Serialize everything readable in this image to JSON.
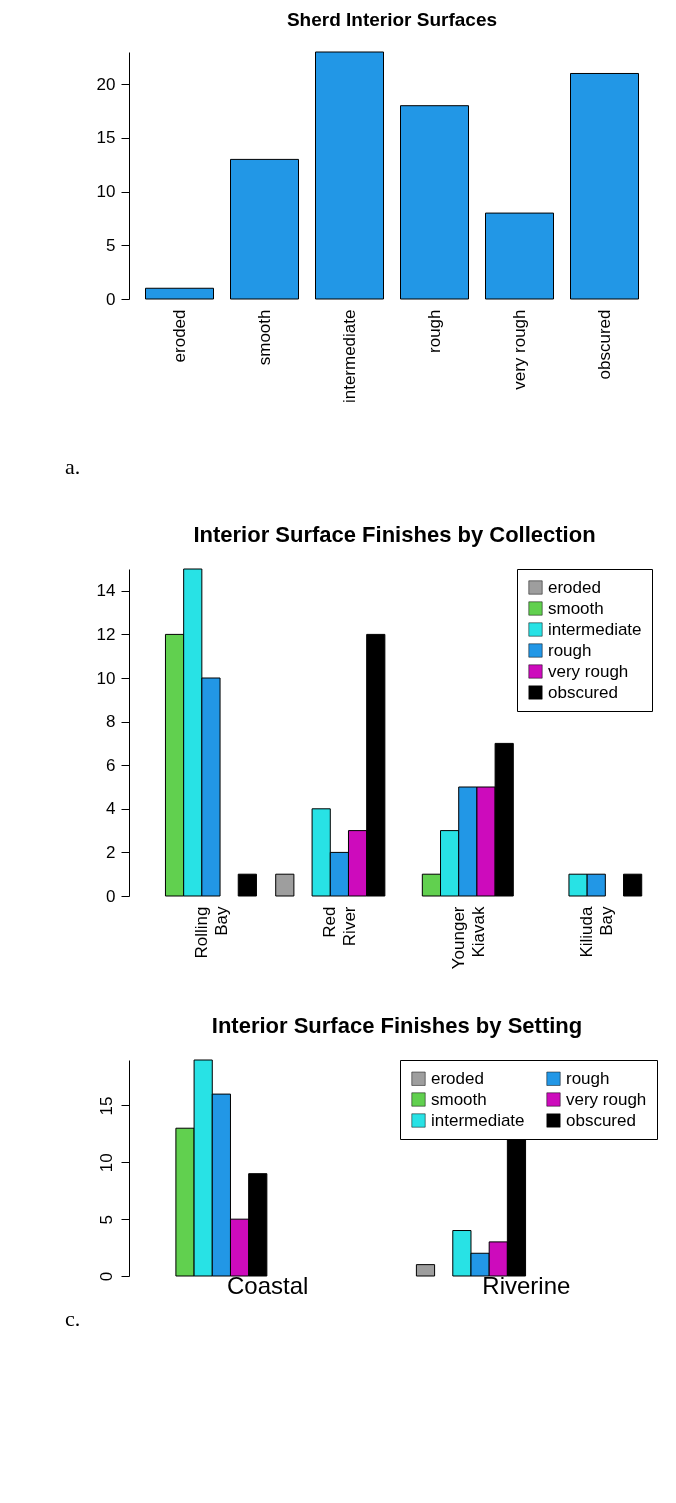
{
  "chart_data": [
    {
      "type": "bar",
      "title": "Sherd Interior Surfaces",
      "categories": [
        "eroded",
        "smooth",
        "intermediate",
        "rough",
        "very rough",
        "obscured"
      ],
      "values": [
        1,
        13,
        23,
        18,
        8,
        21
      ],
      "color": "#2297e6",
      "ylim": [
        0,
        23
      ],
      "yticks": [
        0,
        5,
        10,
        15,
        20
      ],
      "grid": false,
      "annotations": [
        "a."
      ]
    },
    {
      "type": "bar",
      "title": "Interior Surface Finishes by Collection",
      "categories": [
        "Rolling Bay",
        "Red River",
        "Younger Kiavak",
        "Kiliuda Bay"
      ],
      "series": [
        {
          "name": "eroded",
          "color": "#9e9e9e",
          "values": [
            0,
            1,
            0,
            0
          ]
        },
        {
          "name": "smooth",
          "color": "#61d04f",
          "values": [
            12,
            0,
            1,
            0
          ]
        },
        {
          "name": "intermediate",
          "color": "#28e2e5",
          "values": [
            15,
            4,
            3,
            1
          ]
        },
        {
          "name": "rough",
          "color": "#2297e6",
          "values": [
            10,
            2,
            5,
            1
          ]
        },
        {
          "name": "very rough",
          "color": "#cd0bbc",
          "values": [
            0,
            3,
            5,
            0
          ]
        },
        {
          "name": "obscured",
          "color": "#000000",
          "values": [
            1,
            12,
            7,
            1
          ]
        }
      ],
      "ylim": [
        0,
        15
      ],
      "yticks": [
        0,
        2,
        4,
        6,
        8,
        10,
        12,
        14
      ],
      "grid": false,
      "legend": "top right"
    },
    {
      "type": "bar",
      "title": "Interior Surface Finishes by Setting",
      "categories": [
        "Coastal",
        "Riverine"
      ],
      "series": [
        {
          "name": "eroded",
          "color": "#9e9e9e",
          "values": [
            0,
            1
          ]
        },
        {
          "name": "smooth",
          "color": "#61d04f",
          "values": [
            13,
            0
          ]
        },
        {
          "name": "intermediate",
          "color": "#28e2e5",
          "values": [
            19,
            4
          ]
        },
        {
          "name": "rough",
          "color": "#2297e6",
          "values": [
            16,
            2
          ]
        },
        {
          "name": "very rough",
          "color": "#cd0bbc",
          "values": [
            5,
            3
          ]
        },
        {
          "name": "obscured",
          "color": "#000000",
          "values": [
            9,
            12
          ]
        }
      ],
      "ylim": [
        0,
        19
      ],
      "yticks": [
        0,
        5,
        10,
        15
      ],
      "grid": false,
      "legend": "top right",
      "annotations": [
        "c."
      ]
    }
  ]
}
